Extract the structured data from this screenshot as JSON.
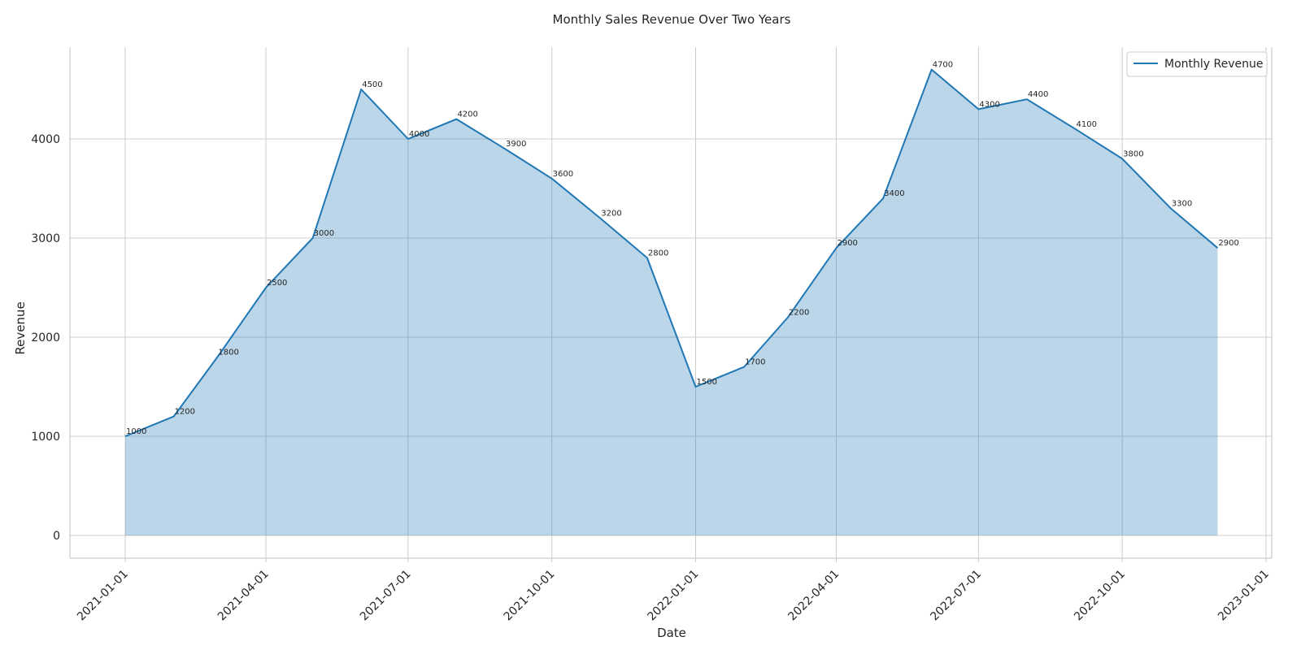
{
  "chart_data": {
    "type": "area",
    "title": "Monthly Sales Revenue Over Two Years",
    "xlabel": "Date",
    "ylabel": "Revenue",
    "x": [
      "2021-01-01",
      "2021-02-01",
      "2021-03-01",
      "2021-04-01",
      "2021-05-01",
      "2021-06-01",
      "2021-07-01",
      "2021-08-01",
      "2021-09-01",
      "2021-10-01",
      "2021-11-01",
      "2021-12-01",
      "2022-01-01",
      "2022-02-01",
      "2022-03-01",
      "2022-04-01",
      "2022-05-01",
      "2022-06-01",
      "2022-07-01",
      "2022-08-01",
      "2022-09-01",
      "2022-10-01",
      "2022-11-01",
      "2022-12-01"
    ],
    "series": [
      {
        "name": "Monthly Revenue",
        "values": [
          1000,
          1200,
          1800,
          2500,
          3000,
          4500,
          4000,
          4200,
          3900,
          3600,
          3200,
          2800,
          1500,
          1700,
          2200,
          2900,
          3400,
          4700,
          4300,
          4400,
          4100,
          3800,
          3300,
          2900
        ],
        "data_labels": [
          "1000",
          "1200",
          "1800",
          "2500",
          "3000",
          "4500",
          "4000",
          "4200",
          "3900",
          "3600",
          "3200",
          "2800",
          "1500",
          "1700",
          "2200",
          "2900",
          "3400",
          "4700",
          "4300",
          "4400",
          "4100",
          "3800",
          "3300",
          "2900"
        ]
      }
    ],
    "x_ticks": [
      "2021-01-01",
      "2021-04-01",
      "2021-07-01",
      "2021-10-01",
      "2022-01-01",
      "2022-04-01",
      "2022-07-01",
      "2022-10-01",
      "2023-01-01"
    ],
    "y_ticks": [
      "0",
      "1000",
      "2000",
      "3000",
      "4000"
    ],
    "ylim": [
      0,
      4940
    ],
    "xlim": [
      "2020-12-17",
      "2023-01-01"
    ],
    "grid": true,
    "legend_position": "top-right",
    "colors": {
      "line": "#1f77b4",
      "fill": "#1f77b4",
      "grid": "#cccccc",
      "spine": "#cccccc"
    }
  }
}
